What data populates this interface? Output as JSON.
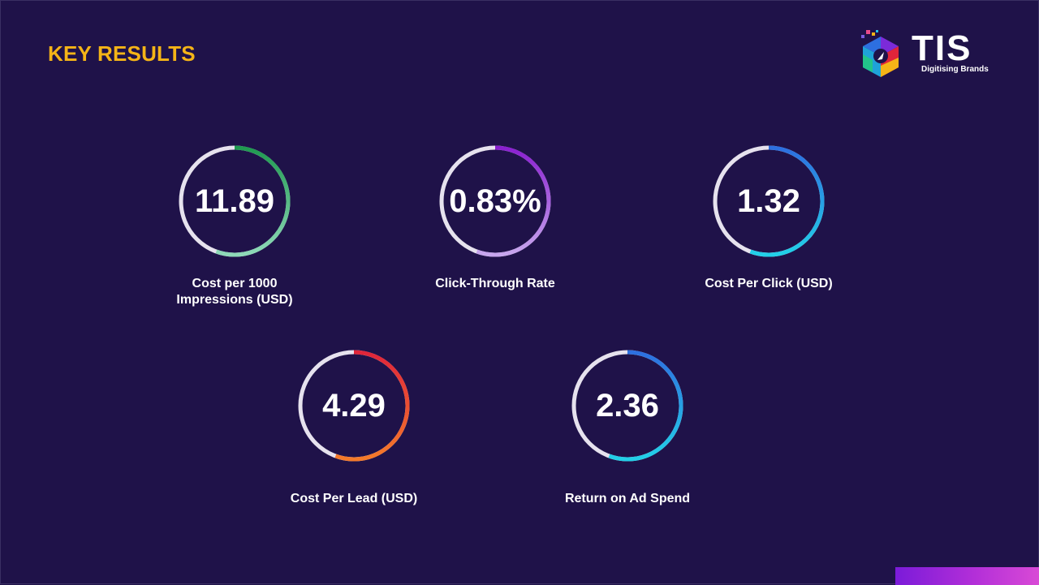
{
  "header": {
    "title": "KEY RESULTS"
  },
  "logo": {
    "name": "TIS",
    "tagline": "Digitising Brands"
  },
  "kpis": [
    {
      "value": "11.89",
      "label": "Cost per 1000\nImpressions (USD)",
      "colors": [
        "#1f9a50",
        "#8ed9b8"
      ],
      "icon": "ring-gauge"
    },
    {
      "value": "0.83%",
      "label": "Click-Through Rate",
      "colors": [
        "#8a1fd0",
        "#c7a6ee"
      ],
      "icon": "ring-gauge"
    },
    {
      "value": "1.32",
      "label": "Cost Per Click (USD)",
      "colors": [
        "#2d6fe0",
        "#22d0e8"
      ],
      "icon": "ring-gauge"
    },
    {
      "value": "4.29",
      "label": "Cost Per Lead (USD)",
      "colors": [
        "#e0253a",
        "#f47a2a"
      ],
      "icon": "ring-gauge"
    },
    {
      "value": "2.36",
      "label": "Return on Ad Spend",
      "colors": [
        "#2d6fe0",
        "#22d0e8"
      ],
      "icon": "ring-gauge"
    }
  ]
}
